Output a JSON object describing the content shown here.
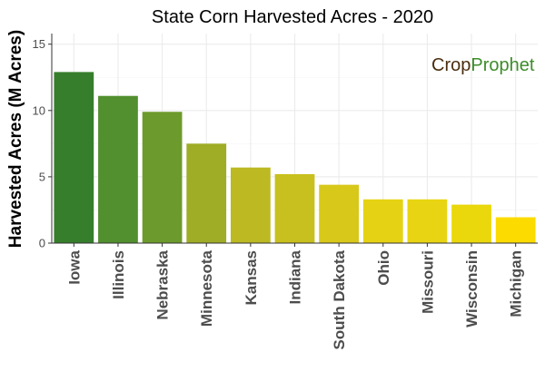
{
  "chart_data": {
    "type": "bar",
    "title": "State Corn Harvested Acres - 2020",
    "xlabel": "",
    "ylabel": "Harvested Acres (M Acres)",
    "ylim": [
      0,
      15.8
    ],
    "yticks": [
      0,
      5,
      10,
      15
    ],
    "grid": true,
    "legend": "none",
    "categories": [
      "Iowa",
      "Illinois",
      "Nebraska",
      "Minnesota",
      "Kansas",
      "Indiana",
      "South Dakota",
      "Ohio",
      "Missouri",
      "Wisconsin",
      "Michigan"
    ],
    "values": [
      12.9,
      11.1,
      9.9,
      7.5,
      5.7,
      5.2,
      4.4,
      3.3,
      3.3,
      2.9,
      1.95
    ],
    "bar_colors": [
      "#367e2c",
      "#528f2e",
      "#6d9a2c",
      "#9fac26",
      "#bcb922",
      "#c8c01e",
      "#d8c81a",
      "#e6d214",
      "#e8d412",
      "#ead80c",
      "#fcdb00"
    ]
  },
  "watermark": {
    "part1": "Crop",
    "part2": "Prophet",
    "color1": "#4a2e10",
    "color2": "#3d8c2a"
  }
}
